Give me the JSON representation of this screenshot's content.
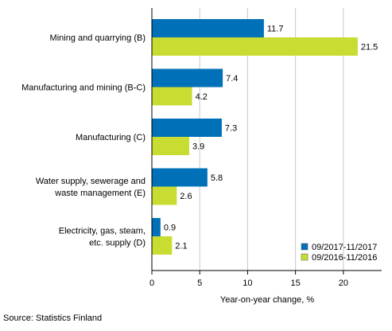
{
  "chart_data": {
    "type": "bar",
    "orientation": "horizontal",
    "categories": [
      [
        "Mining and quarrying (B)"
      ],
      [
        "Manufacturing and mining (B-C)"
      ],
      [
        "Manufacturing (C)"
      ],
      [
        "Water supply, sewerage and",
        "waste management (E)"
      ],
      [
        "Electricity, gas, steam,",
        "etc. supply (D)"
      ]
    ],
    "series": [
      {
        "name": "09/2017-11/2017",
        "color": "#0070b8",
        "values": [
          11.7,
          7.4,
          7.3,
          5.8,
          0.9
        ]
      },
      {
        "name": "09/2016-11/2016",
        "color": "#c8dc32",
        "values": [
          21.5,
          4.2,
          3.9,
          2.6,
          2.1
        ]
      }
    ],
    "value_labels": [
      [
        "11.7",
        "7.4",
        "7.3",
        "5.8",
        "0.9"
      ],
      [
        "21.5",
        "4.2",
        "3.9",
        "2.6",
        "2.1"
      ]
    ],
    "xlim": [
      0,
      24
    ],
    "xticks": [
      0,
      5,
      10,
      15,
      20
    ],
    "xlabel": "Year-on-year change, %",
    "grid": "vertical",
    "legend_position": "bottom-right"
  },
  "source": "Source: Statistics Finland"
}
